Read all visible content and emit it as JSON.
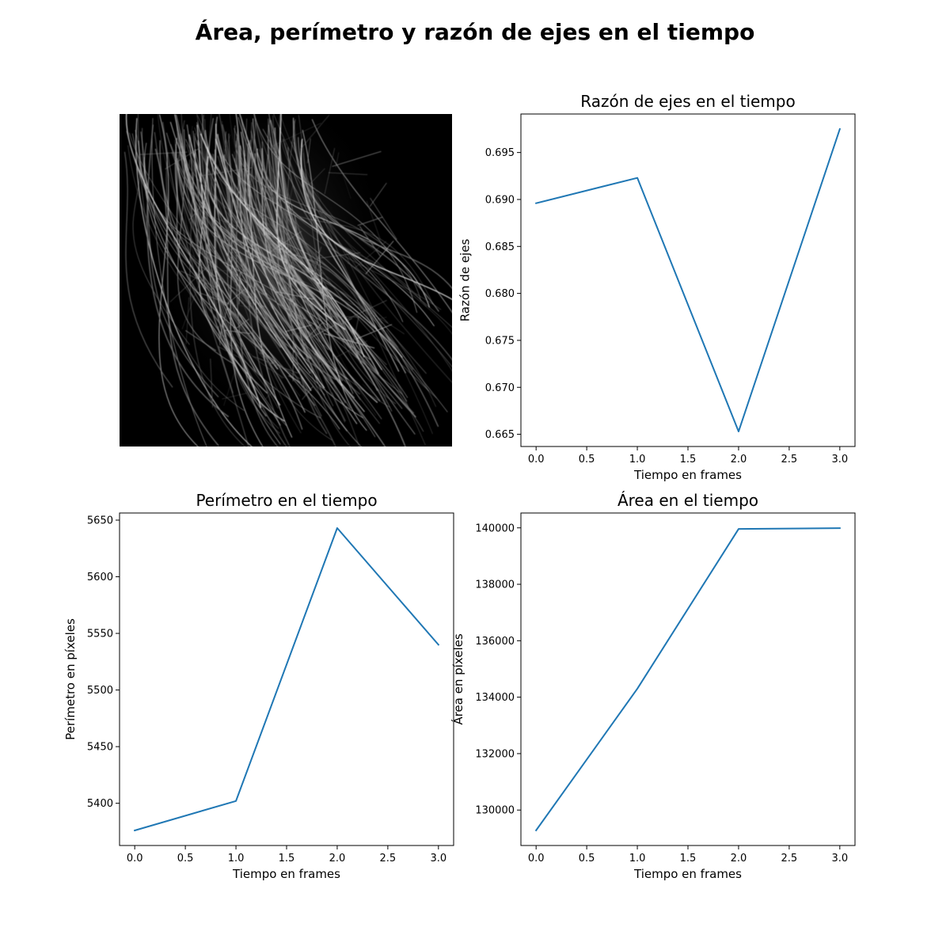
{
  "figure": {
    "title": "Área, perímetro y razón de ejes en el tiempo"
  },
  "chart_data": [
    {
      "type": "image",
      "description_visible": "grayscale microscopy image of filamentous cell structure",
      "axes_visible": false
    },
    {
      "type": "line",
      "title": "Razón de ejes en el tiempo",
      "xlabel": "Tiempo en frames",
      "ylabel": "Razón de ejes",
      "x": [
        0,
        1,
        2,
        3
      ],
      "series": [
        {
          "values": [
            0.6896,
            0.6923,
            0.6653,
            0.6975
          ],
          "color": "#1f77b4"
        }
      ],
      "xlim": [
        -0.15,
        3.15
      ],
      "ylim": [
        0.6637,
        0.6991
      ],
      "xticks": [
        0.0,
        0.5,
        1.0,
        1.5,
        2.0,
        2.5,
        3.0
      ],
      "xtick_labels": [
        "0.0",
        "0.5",
        "1.0",
        "1.5",
        "2.0",
        "2.5",
        "3.0"
      ],
      "yticks": [
        0.665,
        0.67,
        0.675,
        0.68,
        0.685,
        0.69,
        0.695
      ],
      "ytick_labels": [
        "0.665",
        "0.670",
        "0.675",
        "0.680",
        "0.685",
        "0.690",
        "0.695"
      ],
      "grid": false
    },
    {
      "type": "line",
      "title": "Perímetro en el tiempo",
      "xlabel": "Tiempo en frames",
      "ylabel": "Perímetro en píxeles",
      "x": [
        0,
        1,
        2,
        3
      ],
      "series": [
        {
          "values": [
            5376,
            5402,
            5643,
            5540
          ],
          "color": "#1f77b4"
        }
      ],
      "xlim": [
        -0.15,
        3.15
      ],
      "ylim": [
        5362.7,
        5656.3
      ],
      "xticks": [
        0.0,
        0.5,
        1.0,
        1.5,
        2.0,
        2.5,
        3.0
      ],
      "xtick_labels": [
        "0.0",
        "0.5",
        "1.0",
        "1.5",
        "2.0",
        "2.5",
        "3.0"
      ],
      "yticks": [
        5400,
        5450,
        5500,
        5550,
        5600,
        5650
      ],
      "ytick_labels": [
        "5400",
        "5450",
        "5500",
        "5550",
        "5600",
        "5650"
      ],
      "grid": false
    },
    {
      "type": "line",
      "title": "Área en el tiempo",
      "xlabel": "Tiempo en frames",
      "ylabel": "Área en píxeles",
      "x": [
        0,
        1,
        2,
        3
      ],
      "series": [
        {
          "values": [
            129280,
            134300,
            139960,
            139990
          ],
          "color": "#1f77b4"
        }
      ],
      "xlim": [
        -0.15,
        3.15
      ],
      "ylim": [
        128744,
        140526
      ],
      "xticks": [
        0.0,
        0.5,
        1.0,
        1.5,
        2.0,
        2.5,
        3.0
      ],
      "xtick_labels": [
        "0.0",
        "0.5",
        "1.0",
        "1.5",
        "2.0",
        "2.5",
        "3.0"
      ],
      "yticks": [
        130000,
        132000,
        134000,
        136000,
        138000,
        140000
      ],
      "ytick_labels": [
        "130000",
        "132000",
        "134000",
        "136000",
        "138000",
        "140000"
      ],
      "grid": false
    }
  ]
}
